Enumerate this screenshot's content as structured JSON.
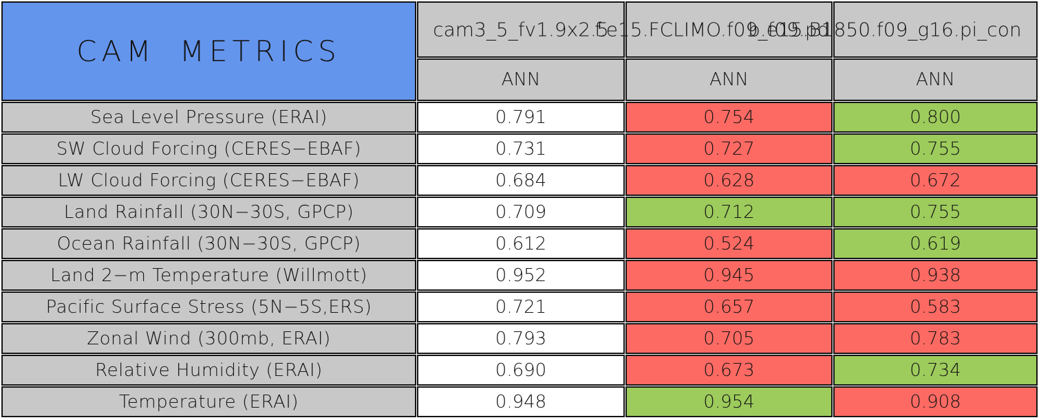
{
  "chart_data": {
    "type": "table",
    "title": "CAM METRICS",
    "models": [
      "cam3_5_fv1.9x2.5",
      "f.e15.FCLIMO.f09_f09.pd",
      "b.e15.B1850.f09_g16.pi_con"
    ],
    "seasons": [
      "ANN",
      "ANN",
      "ANN"
    ],
    "rows": [
      {
        "metric": "Sea Level Pressure (ERAI)",
        "values": [
          "0.791",
          "0.754",
          "0.800"
        ],
        "cell_colors": [
          "white",
          "red",
          "green"
        ]
      },
      {
        "metric": "SW Cloud Forcing (CERES−EBAF)",
        "values": [
          "0.731",
          "0.727",
          "0.755"
        ],
        "cell_colors": [
          "white",
          "red",
          "green"
        ]
      },
      {
        "metric": "LW Cloud Forcing (CERES−EBAF)",
        "values": [
          "0.684",
          "0.628",
          "0.672"
        ],
        "cell_colors": [
          "white",
          "red",
          "red"
        ]
      },
      {
        "metric": "Land Rainfall (30N−30S, GPCP)",
        "values": [
          "0.709",
          "0.712",
          "0.755"
        ],
        "cell_colors": [
          "white",
          "green",
          "green"
        ]
      },
      {
        "metric": "Ocean Rainfall (30N−30S, GPCP)",
        "values": [
          "0.612",
          "0.524",
          "0.619"
        ],
        "cell_colors": [
          "white",
          "red",
          "green"
        ]
      },
      {
        "metric": "Land 2−m Temperature (Willmott)",
        "values": [
          "0.952",
          "0.945",
          "0.938"
        ],
        "cell_colors": [
          "white",
          "red",
          "red"
        ]
      },
      {
        "metric": "Pacific Surface Stress (5N−5S,ERS)",
        "values": [
          "0.721",
          "0.657",
          "0.583"
        ],
        "cell_colors": [
          "white",
          "red",
          "red"
        ]
      },
      {
        "metric": "Zonal Wind (300mb, ERAI)",
        "values": [
          "0.793",
          "0.705",
          "0.783"
        ],
        "cell_colors": [
          "white",
          "red",
          "red"
        ]
      },
      {
        "metric": "Relative Humidity (ERAI)",
        "values": [
          "0.690",
          "0.673",
          "0.734"
        ],
        "cell_colors": [
          "white",
          "red",
          "green"
        ]
      },
      {
        "metric": "Temperature (ERAI)",
        "values": [
          "0.948",
          "0.954",
          "0.908"
        ],
        "cell_colors": [
          "white",
          "green",
          "red"
        ]
      }
    ],
    "palette": {
      "white": "#FFFFFF",
      "red": "#FC6A63",
      "green": "#9DCB5C",
      "header_gray": "#C8C8C8",
      "title_blue": "#6495ED",
      "border_black": "#141414"
    }
  }
}
